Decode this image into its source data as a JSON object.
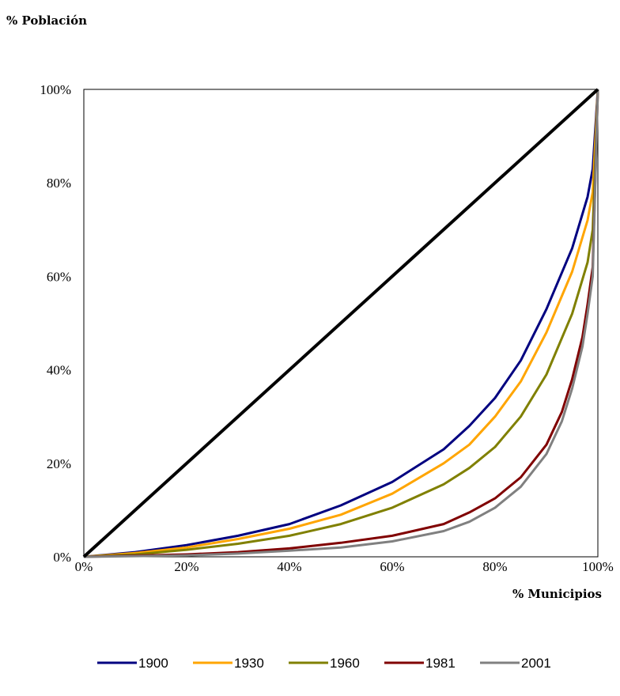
{
  "chart_data": {
    "type": "line",
    "ylabel": "% Población",
    "xlabel": "% Municipios",
    "xlim": [
      0,
      100
    ],
    "ylim": [
      0,
      100
    ],
    "x_ticks": [
      "0%",
      "20%",
      "40%",
      "60%",
      "80%",
      "100%"
    ],
    "y_ticks": [
      "0%",
      "20%",
      "40%",
      "60%",
      "80%",
      "100%"
    ],
    "grid": false,
    "legend_position": "bottom",
    "equality_line": {
      "color": "#000000",
      "points": [
        [
          0,
          0
        ],
        [
          100,
          100
        ]
      ]
    },
    "series": [
      {
        "name": "1900",
        "color": "#000080",
        "points": [
          [
            0,
            0
          ],
          [
            10,
            1
          ],
          [
            20,
            2.5
          ],
          [
            30,
            4.5
          ],
          [
            40,
            7
          ],
          [
            50,
            11
          ],
          [
            60,
            16
          ],
          [
            70,
            23
          ],
          [
            75,
            28
          ],
          [
            80,
            34
          ],
          [
            85,
            42
          ],
          [
            90,
            53
          ],
          [
            95,
            66
          ],
          [
            98,
            77
          ],
          [
            99,
            83
          ],
          [
            100,
            100
          ]
        ]
      },
      {
        "name": "1930",
        "color": "#FFA500",
        "points": [
          [
            0,
            0
          ],
          [
            10,
            0.8
          ],
          [
            20,
            2
          ],
          [
            30,
            3.8
          ],
          [
            40,
            6
          ],
          [
            50,
            9
          ],
          [
            60,
            13.5
          ],
          [
            70,
            20
          ],
          [
            75,
            24
          ],
          [
            80,
            30
          ],
          [
            85,
            37.5
          ],
          [
            90,
            48
          ],
          [
            95,
            61
          ],
          [
            98,
            72
          ],
          [
            99,
            78
          ],
          [
            100,
            100
          ]
        ]
      },
      {
        "name": "1960",
        "color": "#808000",
        "points": [
          [
            0,
            0
          ],
          [
            10,
            0.5
          ],
          [
            20,
            1.5
          ],
          [
            30,
            2.8
          ],
          [
            40,
            4.5
          ],
          [
            50,
            7
          ],
          [
            60,
            10.5
          ],
          [
            70,
            15.5
          ],
          [
            75,
            19
          ],
          [
            80,
            23.5
          ],
          [
            85,
            30
          ],
          [
            90,
            39
          ],
          [
            95,
            52
          ],
          [
            98,
            63
          ],
          [
            99,
            70
          ],
          [
            100,
            100
          ]
        ]
      },
      {
        "name": "1981",
        "color": "#800000",
        "points": [
          [
            0,
            0
          ],
          [
            20,
            0.5
          ],
          [
            30,
            1
          ],
          [
            40,
            1.8
          ],
          [
            50,
            3
          ],
          [
            60,
            4.5
          ],
          [
            70,
            7
          ],
          [
            75,
            9.5
          ],
          [
            80,
            12.5
          ],
          [
            85,
            17
          ],
          [
            90,
            24
          ],
          [
            93,
            31
          ],
          [
            95,
            38
          ],
          [
            97,
            47
          ],
          [
            98,
            54
          ],
          [
            99,
            62
          ],
          [
            100,
            100
          ]
        ]
      },
      {
        "name": "2001",
        "color": "#808080",
        "points": [
          [
            0,
            0
          ],
          [
            20,
            0.3
          ],
          [
            30,
            0.7
          ],
          [
            40,
            1.3
          ],
          [
            50,
            2
          ],
          [
            60,
            3.3
          ],
          [
            70,
            5.5
          ],
          [
            75,
            7.5
          ],
          [
            80,
            10.5
          ],
          [
            85,
            15
          ],
          [
            90,
            22
          ],
          [
            93,
            29
          ],
          [
            95,
            36
          ],
          [
            97,
            45
          ],
          [
            98,
            52
          ],
          [
            99,
            60
          ],
          [
            100,
            100
          ]
        ]
      }
    ]
  }
}
